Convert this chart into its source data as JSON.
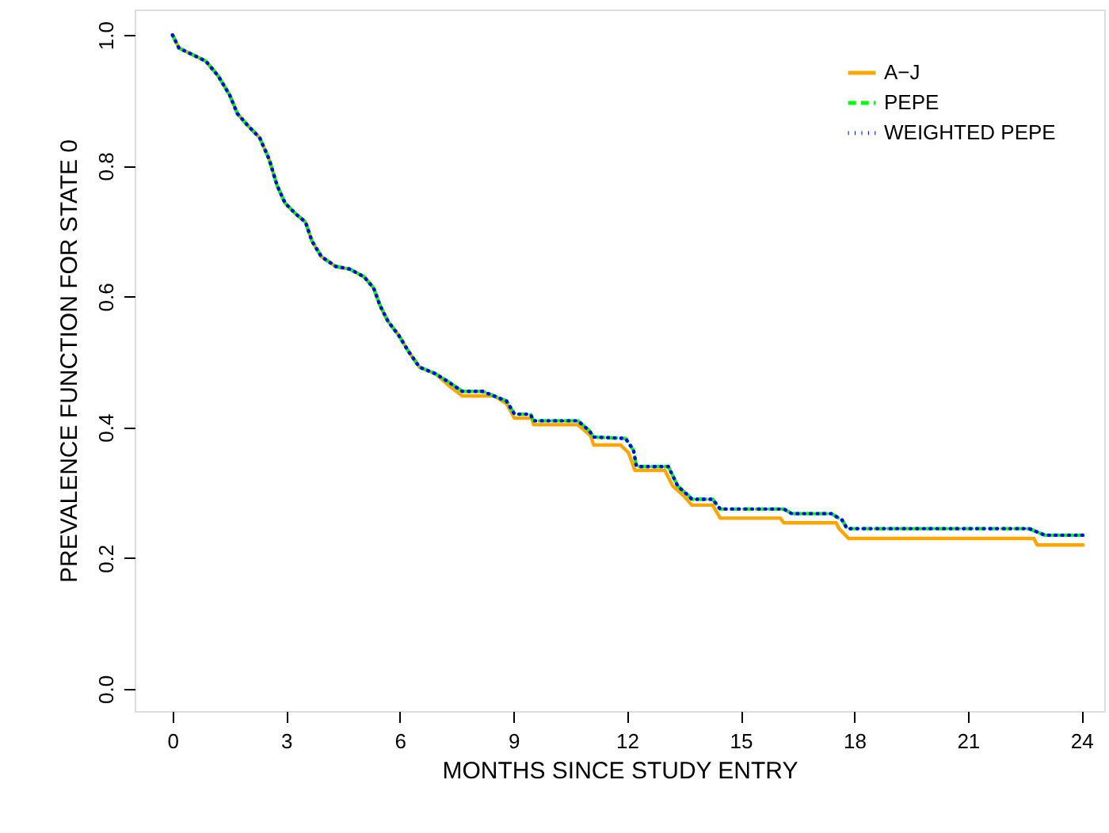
{
  "chart_data": {
    "type": "step",
    "xlabel": "MONTHS  SINCE  STUDY  ENTRY",
    "ylabel": "PREVALENCE  FUNCTION  FOR  STATE  0",
    "xlim": [
      -1,
      24.6
    ],
    "ylim": [
      -0.034,
      1.039
    ],
    "xticks": [
      0,
      3,
      6,
      9,
      12,
      15,
      18,
      21,
      24
    ],
    "yticks": [
      {
        "value": 0,
        "label": "0.0"
      },
      0.2,
      0.4,
      0.6,
      0.8,
      {
        "value": 1,
        "label": "1.0"
      }
    ],
    "grid": false,
    "legend": "top right",
    "marker": "none",
    "series": [
      {
        "name": "A−J",
        "color": "#ffa500",
        "line_style": "solid",
        "x": [
          0,
          0.17,
          0.88,
          1.21,
          1.51,
          1.71,
          2.01,
          2.3,
          2.55,
          2.76,
          2.97,
          3.26,
          3.51,
          3.68,
          3.93,
          4.31,
          4.68,
          5.06,
          5.31,
          5.48,
          5.69,
          5.98,
          6.23,
          6.52,
          6.94,
          7.27,
          7.65,
          8.49,
          8.82,
          9.03,
          9.49,
          9.53,
          10.7,
          11.04,
          11.12,
          11.83,
          12.04,
          12.21,
          13.0,
          13.21,
          13.5,
          13.71,
          14.26,
          14.46,
          16.05,
          16.14,
          17.52,
          17.6,
          17.85,
          22.74,
          22.83,
          24.04
        ],
        "values": [
          1.0,
          0.98,
          0.96,
          0.937,
          0.908,
          0.88,
          0.86,
          0.843,
          0.81,
          0.77,
          0.743,
          0.726,
          0.714,
          0.685,
          0.661,
          0.646,
          0.642,
          0.63,
          0.613,
          0.586,
          0.562,
          0.54,
          0.516,
          0.492,
          0.482,
          0.465,
          0.448,
          0.448,
          0.436,
          0.414,
          0.414,
          0.404,
          0.404,
          0.387,
          0.373,
          0.373,
          0.361,
          0.334,
          0.334,
          0.31,
          0.295,
          0.281,
          0.281,
          0.261,
          0.261,
          0.254,
          0.254,
          0.245,
          0.23,
          0.23,
          0.22,
          0.22
        ]
      },
      {
        "name": "PEPE",
        "color": "#00ff00",
        "line_style": "dashed",
        "x": [
          0,
          0.17,
          0.88,
          1.21,
          1.51,
          1.71,
          2.01,
          2.3,
          2.55,
          2.76,
          2.97,
          3.26,
          3.51,
          3.68,
          3.93,
          4.31,
          4.68,
          5.06,
          5.31,
          5.48,
          5.69,
          5.98,
          6.23,
          6.52,
          6.94,
          7.27,
          7.65,
          8.19,
          8.61,
          8.82,
          9.03,
          9.45,
          9.53,
          10.7,
          11.0,
          11.12,
          11.96,
          12.17,
          12.25,
          13.09,
          13.34,
          13.63,
          13.71,
          14.26,
          14.46,
          16.14,
          16.35,
          17.39,
          17.68,
          17.81,
          22.62,
          23.03,
          24.04
        ],
        "values": [
          1.0,
          0.98,
          0.96,
          0.937,
          0.908,
          0.88,
          0.86,
          0.843,
          0.81,
          0.77,
          0.743,
          0.726,
          0.714,
          0.685,
          0.661,
          0.646,
          0.642,
          0.63,
          0.613,
          0.586,
          0.562,
          0.54,
          0.516,
          0.492,
          0.482,
          0.47,
          0.455,
          0.455,
          0.445,
          0.44,
          0.42,
          0.42,
          0.41,
          0.41,
          0.395,
          0.385,
          0.383,
          0.365,
          0.34,
          0.34,
          0.31,
          0.295,
          0.29,
          0.29,
          0.275,
          0.275,
          0.268,
          0.268,
          0.258,
          0.245,
          0.245,
          0.235,
          0.235
        ]
      },
      {
        "name": "WEIGHTED PEPE",
        "color": "#0000ff",
        "line_style": "dotted",
        "x": [
          0,
          0.17,
          0.88,
          1.21,
          1.51,
          1.71,
          2.01,
          2.3,
          2.55,
          2.76,
          2.97,
          3.26,
          3.51,
          3.68,
          3.93,
          4.31,
          4.68,
          5.06,
          5.31,
          5.48,
          5.69,
          5.98,
          6.23,
          6.52,
          6.94,
          7.27,
          7.65,
          8.19,
          8.61,
          8.82,
          9.03,
          9.45,
          9.53,
          10.7,
          11.0,
          11.12,
          11.96,
          12.17,
          12.25,
          13.09,
          13.34,
          13.63,
          13.71,
          14.26,
          14.46,
          16.14,
          16.35,
          17.39,
          17.68,
          17.81,
          22.62,
          23.03,
          24.04
        ],
        "values": [
          1.0,
          0.98,
          0.96,
          0.937,
          0.908,
          0.88,
          0.86,
          0.843,
          0.81,
          0.77,
          0.743,
          0.726,
          0.714,
          0.685,
          0.661,
          0.646,
          0.642,
          0.63,
          0.613,
          0.586,
          0.562,
          0.54,
          0.516,
          0.492,
          0.482,
          0.47,
          0.455,
          0.455,
          0.445,
          0.44,
          0.42,
          0.42,
          0.41,
          0.41,
          0.395,
          0.385,
          0.383,
          0.365,
          0.34,
          0.34,
          0.31,
          0.295,
          0.29,
          0.29,
          0.275,
          0.275,
          0.268,
          0.268,
          0.258,
          0.245,
          0.245,
          0.235,
          0.235
        ]
      }
    ]
  }
}
